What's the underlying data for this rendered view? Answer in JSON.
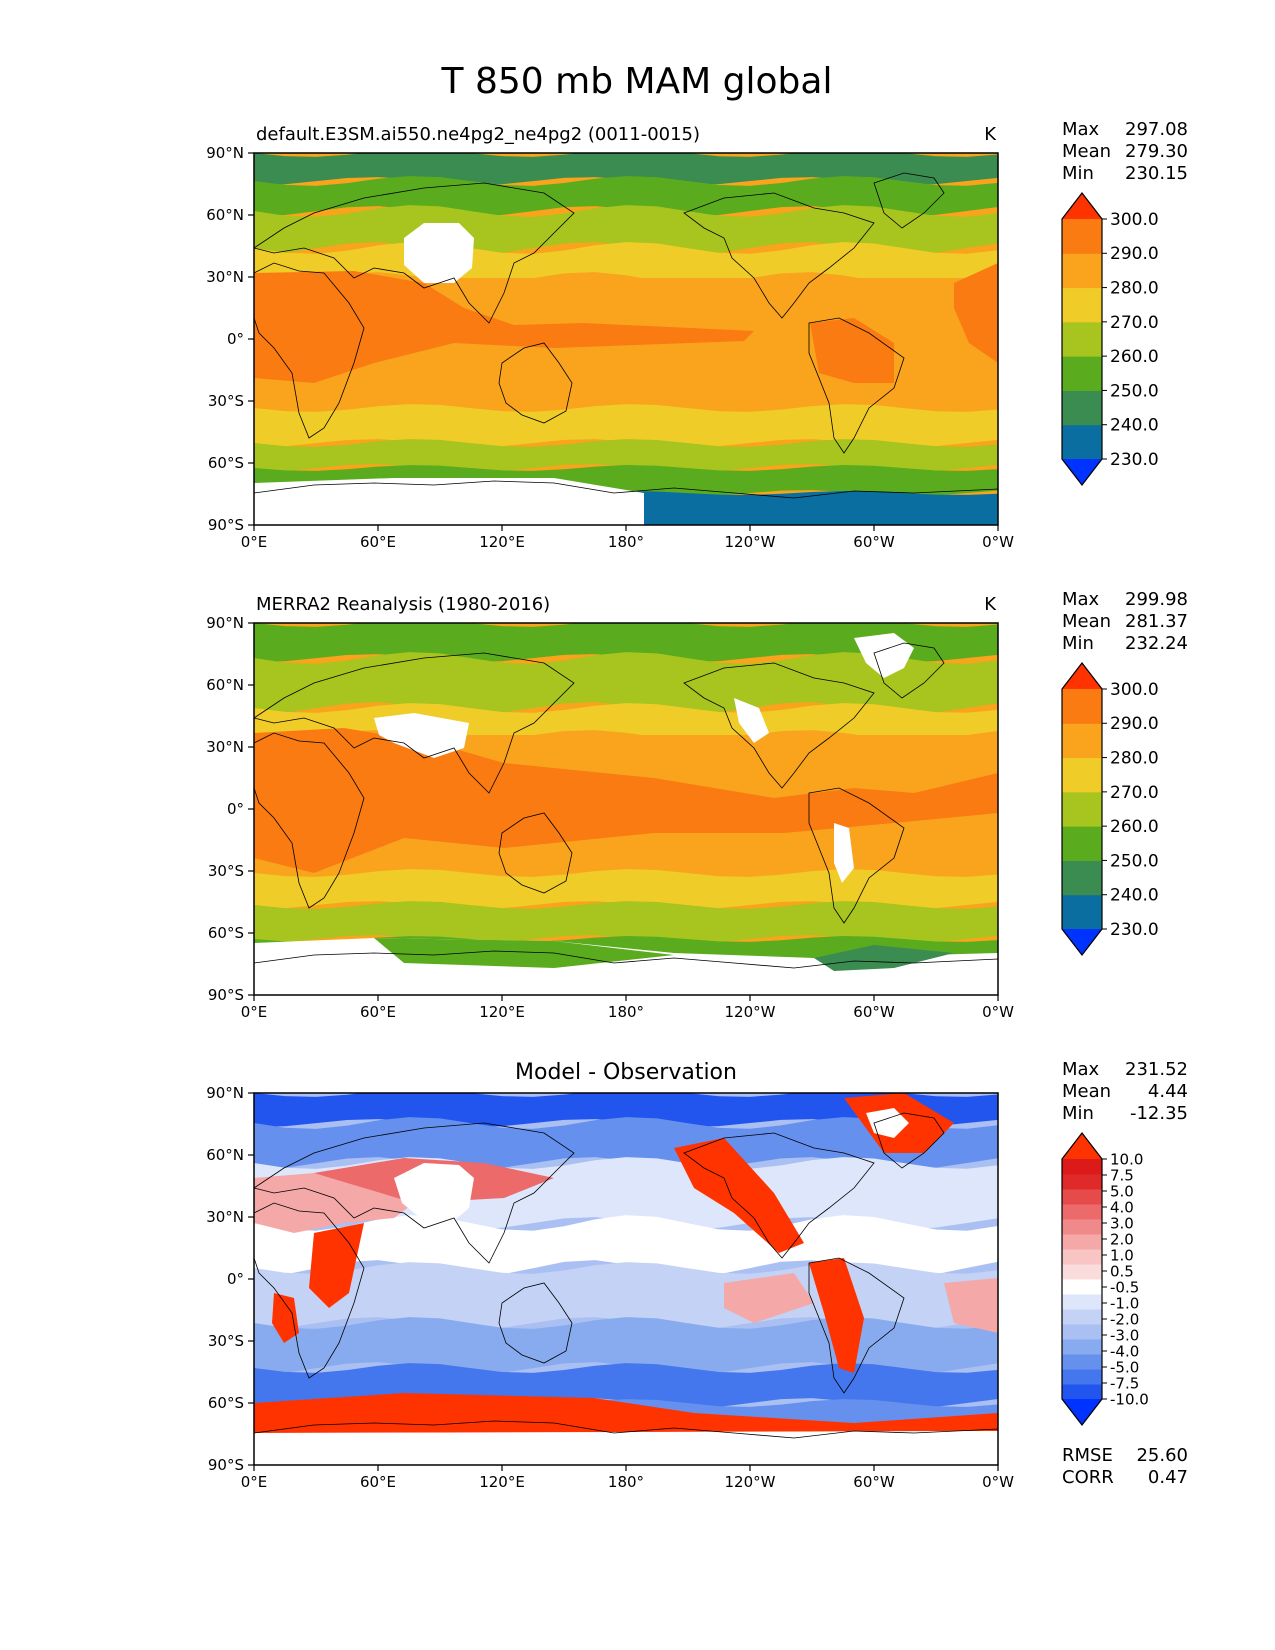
{
  "page_title": "T 850 mb MAM global",
  "colors": {
    "contour": [
      "#0033ff",
      "#0a6fa0",
      "#3a8c50",
      "#5aac1e",
      "#a8c41e",
      "#f0cc28",
      "#f9a41c",
      "#f97b12",
      "#ff3300"
    ],
    "diff": [
      "#0033ff",
      "#2255ee",
      "#4477ee",
      "#6690ee",
      "#88aaee",
      "#aabff2",
      "#c4d2f6",
      "#dde6fa",
      "#ffffff",
      "#fbdcdc",
      "#f8c4c4",
      "#f4a8a8",
      "#f08a8a",
      "#ec6a6a",
      "#e64a4a",
      "#e02a2a",
      "#dc1a1a",
      "#ff3300"
    ],
    "land_outline": "#000000",
    "missing": "#ffffff"
  },
  "chart_data": [
    {
      "type": "heatmap",
      "title": "default.E3SM.ai550.ne4pg2_ne4pg2 (0011-0015)",
      "units": "K",
      "stats": {
        "max_label": "Max",
        "max": "297.08",
        "mean_label": "Mean",
        "mean": "279.30",
        "min_label": "Min",
        "min": "230.15"
      },
      "levels": [
        "230.0",
        "240.0",
        "250.0",
        "260.0",
        "270.0",
        "280.0",
        "290.0",
        "300.0"
      ],
      "xticks": [
        "0°E",
        "60°E",
        "120°E",
        "180°",
        "120°W",
        "60°W",
        "0°W"
      ],
      "yticks": [
        "90°N",
        "60°N",
        "30°N",
        "0°",
        "30°S",
        "60°S",
        "90°S"
      ],
      "xlim": [
        0,
        360
      ],
      "ylim": [
        -90,
        90
      ]
    },
    {
      "type": "heatmap",
      "title": "MERRA2 Reanalysis (1980-2016)",
      "units": "K",
      "stats": {
        "max_label": "Max",
        "max": "299.98",
        "mean_label": "Mean",
        "mean": "281.37",
        "min_label": "Min",
        "min": "232.24"
      },
      "levels": [
        "230.0",
        "240.0",
        "250.0",
        "260.0",
        "270.0",
        "280.0",
        "290.0",
        "300.0"
      ],
      "xticks": [
        "0°E",
        "60°E",
        "120°E",
        "180°",
        "120°W",
        "60°W",
        "0°W"
      ],
      "yticks": [
        "90°N",
        "60°N",
        "30°N",
        "0°",
        "30°S",
        "60°S",
        "90°S"
      ],
      "xlim": [
        0,
        360
      ],
      "ylim": [
        -90,
        90
      ]
    },
    {
      "type": "heatmap",
      "title": "Model - Observation",
      "units": "",
      "stats": {
        "max_label": "Max",
        "max": "231.52",
        "mean_label": "Mean",
        "mean": "4.44",
        "min_label": "Min",
        "min": "-12.35"
      },
      "levels": [
        "-10.0",
        "-7.5",
        "-5.0",
        "-4.0",
        "-3.0",
        "-2.0",
        "-1.0",
        "-0.5",
        "0.5",
        "1.0",
        "2.0",
        "3.0",
        "4.0",
        "5.0",
        "7.5",
        "10.0"
      ],
      "xticks": [
        "0°E",
        "60°E",
        "120°E",
        "180°",
        "120°W",
        "60°W",
        "0°W"
      ],
      "yticks": [
        "90°N",
        "60°N",
        "30°N",
        "0°",
        "30°S",
        "60°S",
        "90°S"
      ],
      "xlim": [
        0,
        360
      ],
      "ylim": [
        -90,
        90
      ],
      "metrics": {
        "rmse_label": "RMSE",
        "rmse": "25.60",
        "corr_label": "CORR",
        "corr": "0.47"
      }
    }
  ]
}
